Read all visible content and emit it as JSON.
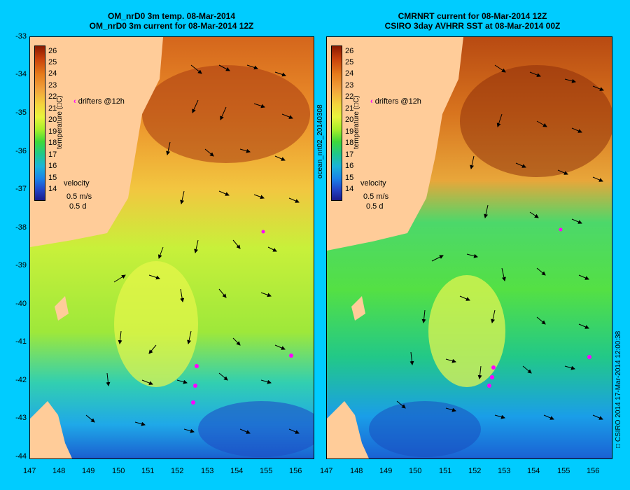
{
  "left": {
    "title_line1": "OM_nrD0 3m temp. 08-Mar-2014",
    "title_line2": "OM_nrD0 3m current for 08-Mar-2014 12Z"
  },
  "right": {
    "title_line1": "CMRNRT current for 08-Mar-2014 12Z",
    "title_line2": "CSIRO 3day AVHRR SST at 08-Mar-2014 00Z"
  },
  "y_ticks": [
    "-33",
    "-34",
    "-35",
    "-36",
    "-37",
    "-38",
    "-39",
    "-40",
    "-41",
    "-42",
    "-43",
    "-44"
  ],
  "x_ticks": [
    "147",
    "148",
    "149",
    "150",
    "151",
    "152",
    "153",
    "154",
    "155",
    "156"
  ],
  "colorbar": {
    "ticks": [
      "26",
      "25",
      "24",
      "23",
      "22",
      "21",
      "20",
      "19",
      "18",
      "17",
      "16",
      "15",
      "14"
    ],
    "label": "temperature (□C)"
  },
  "legend": {
    "drifters": "drifters @12h",
    "velocity": "velocity",
    "speed": "0.5 m/s",
    "duration": "0.5 d"
  },
  "side_label": "ocean_nrt02_20140308",
  "credit": "□ CSIRO 2014   17-Mar-2014 12:00:38",
  "colors": {
    "background": "#00ccff",
    "land": "#ffcc99",
    "drifters": "#ff00ff"
  }
}
